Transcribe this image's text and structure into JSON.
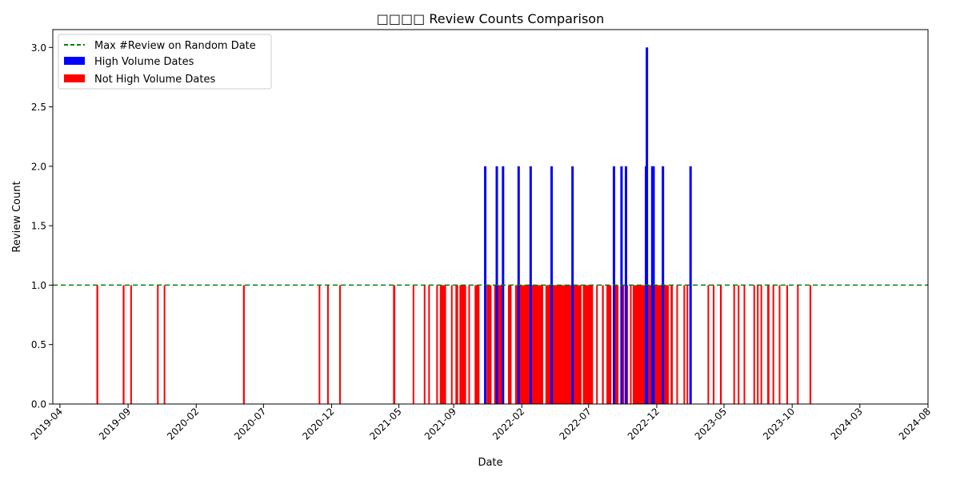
{
  "chart_data": {
    "type": "bar",
    "title": "□□□□ Review Counts Comparison",
    "xlabel": "Date",
    "ylabel": "Review Count",
    "x_axis": {
      "min": "2019-03-16",
      "max": "2024-08-01",
      "ticks": [
        "2019-04",
        "2019-09",
        "2020-02",
        "2020-07",
        "2020-12",
        "2021-05",
        "2021-09",
        "2022-02",
        "2022-07",
        "2022-12",
        "2023-05",
        "2023-10",
        "2024-03",
        "2024-08"
      ]
    },
    "y_axis": {
      "min": 0,
      "max": 3.15,
      "ticks": [
        "0.0",
        "0.5",
        "1.0",
        "1.5",
        "2.0",
        "2.5",
        "3.0"
      ]
    },
    "grid": false,
    "legend_position": "upper left",
    "reference_line": {
      "name": "Max #Review on Random Date",
      "value": 1,
      "color": "#008000",
      "style": "dashed"
    },
    "series": [
      {
        "name": "High Volume Dates",
        "color": "#0000ff",
        "points": [
          {
            "date": "2021-11-10",
            "value": 2
          },
          {
            "date": "2021-12-06",
            "value": 2
          },
          {
            "date": "2021-12-20",
            "value": 2
          },
          {
            "date": "2022-01-24",
            "value": 2
          },
          {
            "date": "2022-02-20",
            "value": 2
          },
          {
            "date": "2022-04-08",
            "value": 2
          },
          {
            "date": "2022-05-25",
            "value": 2
          },
          {
            "date": "2022-08-26",
            "value": 2
          },
          {
            "date": "2022-09-12",
            "value": 2
          },
          {
            "date": "2022-09-22",
            "value": 2
          },
          {
            "date": "2022-11-06",
            "value": 2
          },
          {
            "date": "2022-11-08",
            "value": 3
          },
          {
            "date": "2022-11-20",
            "value": 2
          },
          {
            "date": "2022-11-23",
            "value": 2
          },
          {
            "date": "2022-12-14",
            "value": 2
          },
          {
            "date": "2023-02-14",
            "value": 2
          }
        ]
      },
      {
        "name": "Not High Volume Dates",
        "color": "#ff0000",
        "intervals": [
          [
            "2019-06-22",
            "2019-06-25"
          ],
          [
            "2019-08-20",
            "2019-08-23"
          ],
          [
            "2019-09-06",
            "2019-09-08"
          ],
          [
            "2019-11-05",
            "2019-11-07"
          ],
          [
            "2019-11-20",
            "2019-11-22"
          ],
          [
            "2020-05-16",
            "2020-05-19"
          ],
          [
            "2020-11-02",
            "2020-11-03"
          ],
          [
            "2020-11-21",
            "2020-11-22"
          ],
          [
            "2020-12-18",
            "2020-12-19"
          ],
          [
            "2021-04-18",
            "2021-04-22"
          ],
          [
            "2021-06-01",
            "2021-06-02"
          ],
          [
            "2021-06-26",
            "2021-06-28"
          ],
          [
            "2021-07-06",
            "2021-07-08"
          ],
          [
            "2021-07-24",
            "2021-07-26"
          ],
          [
            "2021-08-01",
            "2021-08-14"
          ],
          [
            "2021-08-26",
            "2021-08-28"
          ],
          [
            "2021-09-05",
            "2021-09-10"
          ],
          [
            "2021-09-14",
            "2021-09-28"
          ],
          [
            "2021-10-04",
            "2021-10-06"
          ],
          [
            "2021-10-18",
            "2021-10-28"
          ],
          [
            "2021-11-14",
            "2021-11-24"
          ],
          [
            "2021-12-01",
            "2021-12-04"
          ],
          [
            "2021-12-08",
            "2021-12-18"
          ],
          [
            "2022-01-01",
            "2022-01-08"
          ],
          [
            "2022-01-17",
            "2022-01-22"
          ],
          [
            "2022-01-26",
            "2022-02-18"
          ],
          [
            "2022-02-22",
            "2022-03-20"
          ],
          [
            "2022-03-26",
            "2022-04-06"
          ],
          [
            "2022-04-10",
            "2022-05-23"
          ],
          [
            "2022-05-27",
            "2022-06-14"
          ],
          [
            "2022-06-18",
            "2022-07-10"
          ],
          [
            "2022-07-18",
            "2022-07-20"
          ],
          [
            "2022-07-31",
            "2022-08-03"
          ],
          [
            "2022-08-10",
            "2022-08-20"
          ],
          [
            "2022-08-28",
            "2022-09-05"
          ],
          [
            "2022-09-14",
            "2022-09-18"
          ],
          [
            "2022-09-24",
            "2022-09-26"
          ],
          [
            "2022-10-02",
            "2022-10-04"
          ],
          [
            "2022-10-08",
            "2022-11-04"
          ],
          [
            "2022-11-10",
            "2022-11-18"
          ],
          [
            "2022-11-25",
            "2022-12-12"
          ],
          [
            "2022-12-16",
            "2022-12-27"
          ],
          [
            "2023-01-01",
            "2023-01-05"
          ],
          [
            "2023-01-14",
            "2023-01-16"
          ],
          [
            "2023-01-30",
            "2023-02-01"
          ],
          [
            "2023-02-06",
            "2023-02-08"
          ],
          [
            "2023-03-25",
            "2023-03-27"
          ],
          [
            "2023-04-06",
            "2023-04-08"
          ],
          [
            "2023-04-22",
            "2023-04-25"
          ],
          [
            "2023-05-22",
            "2023-05-24"
          ],
          [
            "2023-06-01",
            "2023-06-03"
          ],
          [
            "2023-06-14",
            "2023-06-16"
          ],
          [
            "2023-07-06",
            "2023-07-08"
          ],
          [
            "2023-07-14",
            "2023-07-16"
          ],
          [
            "2023-07-22",
            "2023-07-24"
          ],
          [
            "2023-08-06",
            "2023-08-10"
          ],
          [
            "2023-08-18",
            "2023-08-20"
          ],
          [
            "2023-09-01",
            "2023-09-03"
          ],
          [
            "2023-09-18",
            "2023-09-20"
          ],
          [
            "2023-10-12",
            "2023-10-14"
          ],
          [
            "2023-11-09",
            "2023-11-12"
          ]
        ],
        "value": 1
      }
    ]
  }
}
